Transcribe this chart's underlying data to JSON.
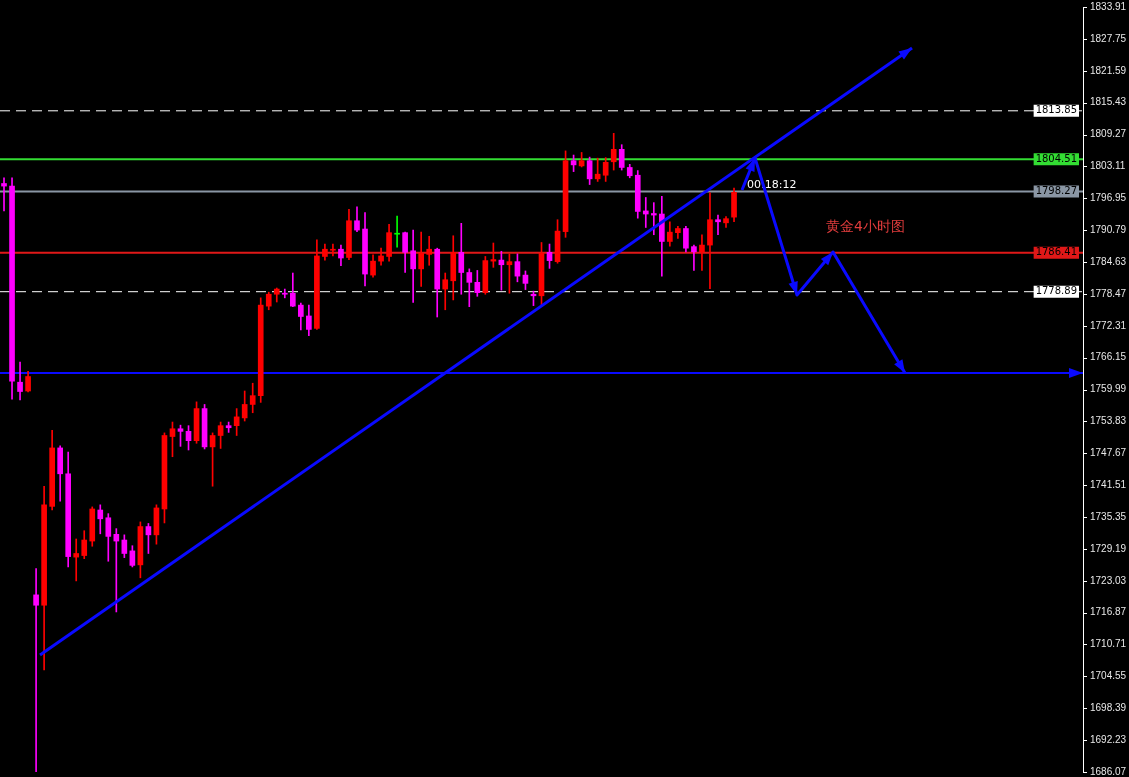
{
  "chart_data": {
    "type": "candlestick",
    "categories": [
      null,
      null,
      null,
      null,
      null,
      null,
      null,
      null,
      null,
      null,
      null,
      null,
      null,
      null,
      null,
      null,
      null,
      null,
      null,
      null,
      null,
      null,
      null,
      null,
      null,
      null,
      null,
      null,
      null,
      null,
      null,
      null,
      null,
      null,
      null,
      null,
      null,
      null,
      null,
      null,
      null,
      null,
      null,
      null,
      null,
      null,
      null,
      null,
      null,
      null,
      null,
      null,
      null,
      null,
      null,
      null,
      null,
      null,
      null,
      null,
      null,
      null,
      null,
      null,
      null,
      null,
      null,
      null,
      null,
      null,
      null,
      null,
      null,
      null,
      null,
      null,
      null,
      null,
      null,
      null,
      null,
      null,
      null,
      null,
      null,
      null,
      null,
      null,
      null,
      null,
      null,
      null,
      null,
      null,
      null,
      null,
      null,
      null,
      null,
      null,
      null,
      null,
      null,
      null,
      null,
      null,
      null,
      null,
      null,
      null,
      null,
      null,
      null,
      null,
      null,
      null,
      null,
      null,
      null,
      null,
      null,
      null,
      null,
      null,
      null,
      null,
      null,
      null,
      null,
      null,
      null,
      null,
      null,
      null,
      null
    ],
    "ohlc": [
      [
        1799.8,
        1800.9,
        1794.5,
        1799.3
      ],
      [
        1799.3,
        1800.9,
        1758.1,
        1761.6
      ],
      [
        1761.4,
        1765.3,
        1758.0,
        1759.6
      ],
      [
        1759.7,
        1763.5,
        1759.5,
        1762.5
      ],
      [
        1720.3,
        1725.4,
        1686.1,
        1718.3
      ],
      [
        1718.3,
        1741.3,
        1705.8,
        1737.7
      ],
      [
        1737.4,
        1752.1,
        1736.7,
        1748.7
      ],
      [
        1748.7,
        1749.1,
        1738.4,
        1743.7
      ],
      [
        1743.7,
        1747.9,
        1725.7,
        1727.7
      ],
      [
        1727.6,
        1731.1,
        1723.0,
        1728.3
      ],
      [
        1727.9,
        1732.7,
        1727.3,
        1730.9
      ],
      [
        1730.7,
        1737.3,
        1729.7,
        1736.9
      ],
      [
        1736.7,
        1737.7,
        1732.1,
        1735.0
      ],
      [
        1735.2,
        1736.0,
        1726.8,
        1731.6
      ],
      [
        1732.0,
        1733.1,
        1717.0,
        1730.7
      ],
      [
        1730.9,
        1731.9,
        1727.5,
        1728.3
      ],
      [
        1728.8,
        1729.8,
        1725.7,
        1726.0
      ],
      [
        1726.1,
        1734.4,
        1723.6,
        1733.5
      ],
      [
        1733.5,
        1734.1,
        1728.3,
        1731.9
      ],
      [
        1731.9,
        1737.7,
        1730.1,
        1737.1
      ],
      [
        1736.9,
        1751.6,
        1734.2,
        1751.1
      ],
      [
        1750.9,
        1753.7,
        1747.0,
        1752.4
      ],
      [
        1752.4,
        1753.1,
        1749.0,
        1751.9
      ],
      [
        1751.9,
        1753.0,
        1748.3,
        1750.1
      ],
      [
        1750.1,
        1757.6,
        1749.6,
        1756.3
      ],
      [
        1756.3,
        1757.1,
        1748.5,
        1748.9
      ],
      [
        1748.9,
        1751.6,
        1741.3,
        1751.1
      ],
      [
        1751.1,
        1753.7,
        1748.6,
        1753.0
      ],
      [
        1753.0,
        1753.7,
        1751.7,
        1752.6
      ],
      [
        1753.0,
        1756.3,
        1751.1,
        1754.7
      ],
      [
        1754.5,
        1759.7,
        1753.9,
        1757.1
      ],
      [
        1757.1,
        1761.2,
        1755.5,
        1758.8
      ],
      [
        1758.8,
        1777.7,
        1757.5,
        1776.3
      ],
      [
        1776.1,
        1778.8,
        1775.4,
        1778.4
      ],
      [
        1778.4,
        1779.6,
        1776.9,
        1779.4
      ],
      [
        1778.6,
        1779.4,
        1777.7,
        1778.4
      ],
      [
        1778.6,
        1782.5,
        1776.0,
        1776.1
      ],
      [
        1776.3,
        1776.7,
        1771.5,
        1774.1
      ],
      [
        1774.2,
        1776.3,
        1770.4,
        1771.6
      ],
      [
        1771.8,
        1788.9,
        1771.6,
        1785.8
      ],
      [
        1785.7,
        1788.1,
        1785.0,
        1787.1
      ],
      [
        1786.9,
        1788.1,
        1785.8,
        1787.1
      ],
      [
        1787.1,
        1787.9,
        1783.9,
        1785.4
      ],
      [
        1785.5,
        1794.8,
        1785.1,
        1792.6
      ],
      [
        1792.6,
        1795.3,
        1790.5,
        1790.8
      ],
      [
        1791.0,
        1794.2,
        1780.0,
        1782.3
      ],
      [
        1782.1,
        1786.0,
        1781.7,
        1784.8
      ],
      [
        1784.8,
        1787.3,
        1784.0,
        1785.8
      ],
      [
        1785.7,
        1791.9,
        1784.8,
        1790.3
      ],
      [
        1790.0,
        1793.5,
        1787.5,
        1790.0
      ],
      [
        1790.3,
        1790.4,
        1782.6,
        1786.5
      ],
      [
        1786.8,
        1790.8,
        1776.8,
        1783.3
      ],
      [
        1783.3,
        1790.4,
        1779.9,
        1786.3
      ],
      [
        1786.1,
        1789.6,
        1784.0,
        1787.1
      ],
      [
        1787.1,
        1787.3,
        1774.0,
        1779.4
      ],
      [
        1779.4,
        1782.5,
        1775.4,
        1781.2
      ],
      [
        1781.0,
        1789.7,
        1777.3,
        1786.5
      ],
      [
        1786.5,
        1792.1,
        1778.4,
        1782.6
      ],
      [
        1782.6,
        1783.3,
        1776.0,
        1780.7
      ],
      [
        1780.7,
        1783.0,
        1778.0,
        1778.7
      ],
      [
        1778.7,
        1785.7,
        1778.4,
        1784.9
      ],
      [
        1784.8,
        1788.3,
        1783.6,
        1785.1
      ],
      [
        1785.0,
        1786.7,
        1779.2,
        1784.1
      ],
      [
        1784.1,
        1786.2,
        1778.6,
        1784.7
      ],
      [
        1784.7,
        1786.2,
        1780.8,
        1781.9
      ],
      [
        1782.1,
        1782.9,
        1779.3,
        1780.5
      ],
      [
        1778.4,
        1779.0,
        1776.2,
        1778.1
      ],
      [
        1778.1,
        1788.4,
        1776.3,
        1786.3
      ],
      [
        1786.5,
        1788.1,
        1783.4,
        1784.9
      ],
      [
        1784.7,
        1792.8,
        1784.4,
        1790.6
      ],
      [
        1790.5,
        1806.1,
        1789.4,
        1804.2
      ],
      [
        1804.2,
        1805.3,
        1802.1,
        1803.4
      ],
      [
        1803.2,
        1805.8,
        1803.0,
        1804.2
      ],
      [
        1804.2,
        1804.9,
        1799.6,
        1800.7
      ],
      [
        1800.7,
        1804.7,
        1800.2,
        1801.6
      ],
      [
        1801.4,
        1804.8,
        1800.2,
        1803.9
      ],
      [
        1804.0,
        1809.5,
        1802.4,
        1806.4
      ],
      [
        1806.4,
        1807.3,
        1802.4,
        1802.9
      ],
      [
        1802.9,
        1803.5,
        1800.9,
        1801.3
      ],
      [
        1801.4,
        1802.3,
        1793.1,
        1794.4
      ],
      [
        1794.5,
        1797.1,
        1791.3,
        1793.9
      ],
      [
        1794.0,
        1796.1,
        1789.9,
        1793.7
      ],
      [
        1793.9,
        1797.3,
        1781.9,
        1788.6
      ],
      [
        1788.6,
        1792.4,
        1787.7,
        1790.4
      ],
      [
        1790.3,
        1791.5,
        1789.2,
        1791.1
      ],
      [
        1791.1,
        1791.5,
        1786.6,
        1787.3
      ],
      [
        1787.6,
        1787.9,
        1783.0,
        1786.6
      ],
      [
        1786.6,
        1789.9,
        1783.0,
        1787.9
      ],
      [
        1787.9,
        1798.0,
        1779.5,
        1792.8
      ],
      [
        1792.8,
        1793.7,
        1789.9,
        1792.4
      ],
      [
        1792.2,
        1793.4,
        1791.3,
        1793.0
      ],
      [
        1793.3,
        1798.9,
        1792.4,
        1798.1
      ],
      null,
      null,
      null,
      null,
      null,
      null,
      null,
      null,
      null,
      null,
      null,
      null,
      null,
      null,
      null,
      null,
      null,
      null,
      null,
      null,
      null,
      null,
      null,
      null,
      null,
      null,
      null,
      null,
      null,
      null,
      null,
      null,
      null,
      null,
      null,
      null,
      null,
      null,
      null,
      null,
      null,
      null,
      null
    ],
    "colors": [
      "#ff00ff",
      "#ff00ff",
      "#ff00ff",
      "#ff0000",
      "#ff00ff",
      "#ff0000",
      "#ff0000",
      "#ff00ff",
      "#ff00ff",
      "#ff0000",
      "#ff0000",
      "#ff0000",
      "#ff00ff",
      "#ff00ff",
      "#ff00ff",
      "#ff00ff",
      "#ff00ff",
      "#ff0000",
      "#ff00ff",
      "#ff0000",
      "#ff0000",
      "#ff0000",
      "#ff00ff",
      "#ff00ff",
      "#ff0000",
      "#ff00ff",
      "#ff0000",
      "#ff0000",
      "#ff00ff",
      "#ff0000",
      "#ff0000",
      "#ff0000",
      "#ff0000",
      "#ff0000",
      "#ff0000",
      "#ff00ff",
      "#ff00ff",
      "#ff00ff",
      "#ff00ff",
      "#ff0000",
      "#ff0000",
      "#ff0000",
      "#ff00ff",
      "#ff0000",
      "#ff00ff",
      "#ff00ff",
      "#ff0000",
      "#ff0000",
      "#ff0000",
      "#00ff00",
      "#ff00ff",
      "#ff00ff",
      "#ff0000",
      "#ff0000",
      "#ff00ff",
      "#ff0000",
      "#ff0000",
      "#ff00ff",
      "#ff00ff",
      "#ff00ff",
      "#ff0000",
      "#ff0000",
      "#ff00ff",
      "#ff0000",
      "#ff00ff",
      "#ff00ff",
      "#ff00ff",
      "#ff0000",
      "#ff00ff",
      "#ff0000",
      "#ff0000",
      "#ff00ff",
      "#ff0000",
      "#ff00ff",
      "#ff0000",
      "#ff0000",
      "#ff0000",
      "#ff00ff",
      "#ff00ff",
      "#ff00ff",
      "#ff00ff",
      "#ff00ff",
      "#ff00ff",
      "#ff0000",
      "#ff0000",
      "#ff00ff",
      "#ff00ff",
      "#ff0000",
      "#ff0000",
      "#ff00ff",
      "#ff0000",
      "#ff0000",
      null,
      null,
      null,
      null,
      null,
      null,
      null,
      null,
      null,
      null,
      null,
      null,
      null,
      null,
      null,
      null,
      null,
      null,
      null,
      null,
      null,
      null,
      null,
      null,
      null,
      null,
      null,
      null,
      null,
      null,
      null,
      null,
      null,
      null,
      null,
      null,
      null,
      null,
      null,
      null,
      null,
      null,
      null
    ],
    "ylim": [
      1686.07,
      1833.91
    ],
    "yticks": [
      1833.91,
      1827.75,
      1821.59,
      1815.43,
      1809.27,
      1803.11,
      1796.95,
      1790.79,
      1784.63,
      1778.47,
      1772.31,
      1766.15,
      1759.99,
      1753.83,
      1747.67,
      1741.51,
      1735.35,
      1729.19,
      1723.03,
      1716.87,
      1710.71,
      1704.55,
      1698.39,
      1692.23,
      1686.07
    ],
    "ref_lines": [
      {
        "axis": "y",
        "value": 1813.85,
        "label": "1813.85",
        "color": "#ffffff",
        "line_style": "dashed"
      },
      {
        "axis": "y",
        "value": 1804.51,
        "label": "1804.51",
        "color": "#33dd33",
        "line_style": "solid"
      },
      {
        "axis": "y",
        "value": 1798.27,
        "label": "1798.27",
        "color": "#8a96a4",
        "line_style": "solid"
      },
      {
        "axis": "y",
        "value": 1786.41,
        "label": "1786.41",
        "color": "#e01818",
        "line_style": "solid"
      },
      {
        "axis": "y",
        "value": 1778.89,
        "label": "1778.89",
        "color": "#ffffff",
        "line_style": "dashed"
      },
      {
        "axis": "y",
        "value": 1763.17,
        "color": "#0a0aff",
        "line_style": "solid"
      }
    ],
    "annotations": [
      "00:18:12",
      "黄金4小时图"
    ],
    "tick_labels": "y",
    "grid": false,
    "legend": false
  }
}
